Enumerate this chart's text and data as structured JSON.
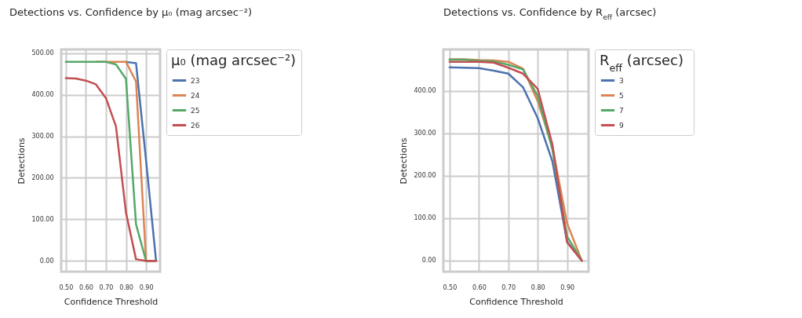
{
  "chart_data": [
    {
      "type": "line",
      "title": "Detections vs. Confidence by μ₀ (mag arcsec⁻²)",
      "xlabel": "Confidence Threshold",
      "ylabel": "Detections",
      "legend_title": "μ₀ (mag arcsec⁻²)",
      "legend": "top right",
      "grid": true,
      "x": [
        0.5,
        0.55,
        0.6,
        0.65,
        0.7,
        0.75,
        0.8,
        0.85,
        0.9,
        0.95
      ],
      "xlim": [
        0.477,
        0.97
      ],
      "xticks": [
        {
          "value": 0.5,
          "label": "0.50"
        },
        {
          "value": 0.6,
          "label": "0.60"
        },
        {
          "value": 0.7,
          "label": "0.70"
        },
        {
          "value": 0.8,
          "label": "0.80"
        },
        {
          "value": 0.9,
          "label": "0.90"
        }
      ],
      "ylim": [
        -26,
        509
      ],
      "yticks": [
        {
          "value": 0,
          "label": "0.00"
        },
        {
          "value": 100,
          "label": "100.00"
        },
        {
          "value": 200,
          "label": "200.00"
        },
        {
          "value": 300,
          "label": "300.00"
        },
        {
          "value": 400,
          "label": "400.00"
        },
        {
          "value": 500,
          "label": "500.00"
        }
      ],
      "series": [
        {
          "name": "23",
          "color": "#4c72b0",
          "values": [
            null,
            null,
            null,
            null,
            null,
            null,
            479,
            476,
            242,
            0
          ]
        },
        {
          "name": "24",
          "color": "#dd8452",
          "values": [
            null,
            null,
            null,
            479,
            479,
            479,
            479,
            432,
            0,
            0
          ]
        },
        {
          "name": "25",
          "color": "#55a868",
          "values": [
            479,
            479,
            479,
            479,
            479,
            473,
            438,
            88,
            0,
            0
          ]
        },
        {
          "name": "26",
          "color": "#c44e52",
          "values": [
            440,
            439,
            434,
            425,
            392,
            324,
            116,
            4,
            0,
            0
          ]
        }
      ]
    },
    {
      "type": "line",
      "title": "Detections vs. Confidence by R$_{eff}$ (arcsec)",
      "xlabel": "Confidence Threshold",
      "ylabel": "Detections",
      "legend_title": "R$_{eff}$ (arcsec)",
      "legend": "top right",
      "grid": true,
      "x": [
        0.5,
        0.55,
        0.6,
        0.65,
        0.7,
        0.75,
        0.8,
        0.85,
        0.9,
        0.95
      ],
      "xlim": [
        0.479,
        0.973
      ],
      "xticks": [
        {
          "value": 0.5,
          "label": "0.50"
        },
        {
          "value": 0.6,
          "label": "0.60"
        },
        {
          "value": 0.7,
          "label": "0.70"
        },
        {
          "value": 0.8,
          "label": "0.80"
        },
        {
          "value": 0.9,
          "label": "0.90"
        }
      ],
      "ylim": [
        -26,
        498
      ],
      "yticks": [
        {
          "value": 0,
          "label": "0.00"
        },
        {
          "value": 100,
          "label": "100.00"
        },
        {
          "value": 200,
          "label": "200.00"
        },
        {
          "value": 300,
          "label": "300.00"
        },
        {
          "value": 400,
          "label": "400.00"
        }
      ],
      "series": [
        {
          "name": "3",
          "color": "#4c72b0",
          "values": [
            456,
            455,
            454,
            448,
            441,
            409,
            336,
            234,
            45,
            0
          ]
        },
        {
          "name": "5",
          "color": "#dd8452",
          "values": [
            475,
            475,
            473,
            472,
            469,
            453,
            376,
            268,
            88,
            0
          ]
        },
        {
          "name": "7",
          "color": "#55a868",
          "values": [
            474,
            474,
            471,
            470,
            462,
            451,
            388,
            262,
            57,
            0
          ]
        },
        {
          "name": "9",
          "color": "#c44e52",
          "values": [
            469,
            469,
            469,
            467,
            455,
            441,
            405,
            274,
            43,
            0
          ]
        }
      ]
    }
  ]
}
